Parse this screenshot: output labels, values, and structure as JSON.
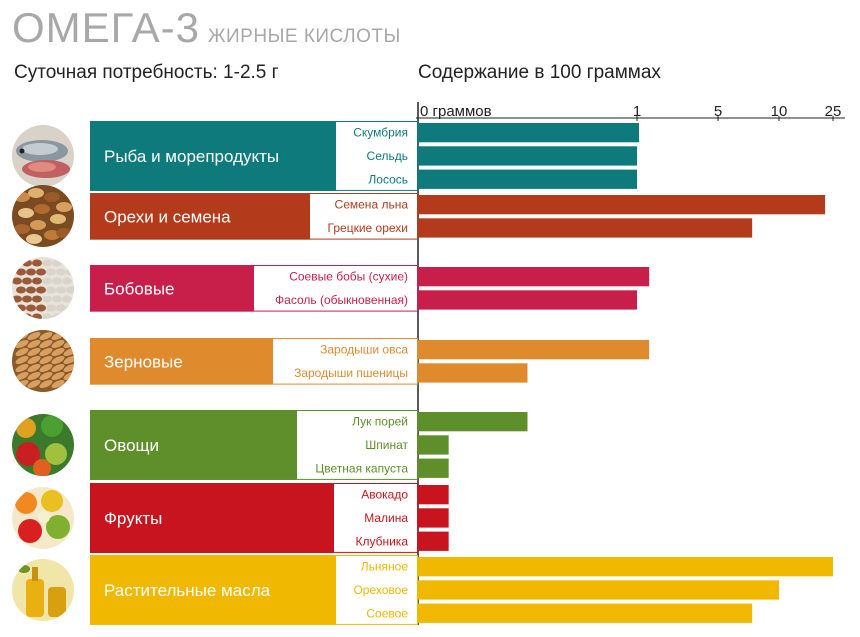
{
  "title": {
    "main": "ОМЕГА-3",
    "sub": "ЖИРНЫЕ КИСЛОТЫ"
  },
  "daily_need": "Суточная потребность: 1-2.5 г",
  "content_header": "Содержание в 100 граммах",
  "colors": {
    "fish": "#0e7a7c",
    "nuts": "#b33a1a",
    "legumes": "#c81f4a",
    "grains": "#e08a2e",
    "vegetables": "#5e8f2a",
    "fruits": "#c8141e",
    "oils": "#f0b800"
  },
  "chart_data": {
    "type": "bar",
    "orientation": "horizontal",
    "x_ticks": [
      "0 граммов",
      "1",
      "5",
      "10",
      "25"
    ],
    "x_scale": "piecewise-linear (0, 1, 5, 10, 25)",
    "xlim": [
      0,
      25
    ],
    "groups": [
      {
        "name": "Рыба и морепродукты",
        "color": "#0e7a7c",
        "icon": "fish-icon",
        "items": [
          {
            "label": "Скумбрия",
            "value": 1.1
          },
          {
            "label": "Сельдь",
            "value": 1.0
          },
          {
            "label": "Лосось",
            "value": 1.0
          }
        ]
      },
      {
        "name": "Орехи и семена",
        "color": "#b33a1a",
        "icon": "nuts-icon",
        "items": [
          {
            "label": "Семена льна",
            "value": 22.8
          },
          {
            "label": "Грецкие орехи",
            "value": 7.8
          }
        ]
      },
      {
        "name": "Бобовые",
        "color": "#c81f4a",
        "icon": "beans-icon",
        "items": [
          {
            "label": "Соевые бобы (сухие)",
            "value": 1.6
          },
          {
            "label": "Фасоль (обыкновенная)",
            "value": 1.0
          }
        ]
      },
      {
        "name": "Зерновые",
        "color": "#e08a2e",
        "icon": "grain-icon",
        "items": [
          {
            "label": "Зародыши овса",
            "value": 1.6
          },
          {
            "label": "Зародыши пшеницы",
            "value": 0.5
          }
        ]
      },
      {
        "name": "Овощи",
        "color": "#5e8f2a",
        "icon": "vegetables-icon",
        "items": [
          {
            "label": "Лук порей",
            "value": 0.5
          },
          {
            "label": "Шпинат",
            "value": 0.14
          },
          {
            "label": "Цветная капуста",
            "value": 0.14
          }
        ]
      },
      {
        "name": "Фрукты",
        "color": "#c8141e",
        "icon": "fruits-icon",
        "items": [
          {
            "label": "Авокадо",
            "value": 0.14
          },
          {
            "label": "Малина",
            "value": 0.14
          },
          {
            "label": "Клубника",
            "value": 0.14
          }
        ]
      },
      {
        "name": "Растительные масла",
        "color": "#f0b800",
        "icon": "oil-icon",
        "items": [
          {
            "label": "Льняное",
            "value": 25
          },
          {
            "label": "Ореховое",
            "value": 10
          },
          {
            "label": "Соевое",
            "value": 7.8
          }
        ]
      }
    ]
  }
}
